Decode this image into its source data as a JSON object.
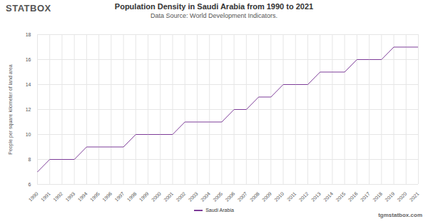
{
  "chart_data": {
    "type": "line",
    "title": "Population Density in Saudi Arabia from 1990 to 2021",
    "subtitle": "Data Source: World Development Indicators.",
    "annotations": [
      "STATBOX",
      "tgmstatbox.com"
    ],
    "y_label": "People per square kilometer of land area",
    "x": [
      1990,
      1991,
      1992,
      1993,
      1994,
      1995,
      1996,
      1997,
      1998,
      1999,
      2000,
      2001,
      2002,
      2003,
      2004,
      2005,
      2006,
      2007,
      2008,
      2009,
      2010,
      2011,
      2012,
      2013,
      2014,
      2015,
      2016,
      2017,
      2018,
      2019,
      2020,
      2021
    ],
    "series": [
      {
        "name": "Saudi Arabia",
        "color": "#7d3c98",
        "values": [
          7,
          8,
          8,
          8,
          9,
          9,
          9,
          9,
          10,
          10,
          10,
          10,
          11,
          11,
          11,
          11,
          12,
          12,
          13,
          13,
          14,
          14,
          14,
          15,
          15,
          15,
          16,
          16,
          16,
          17,
          17,
          17
        ]
      }
    ],
    "xlim": [
      1990,
      2021
    ],
    "xticks": [
      1990,
      1991,
      1992,
      1993,
      1994,
      1995,
      1996,
      1997,
      1998,
      1999,
      2000,
      2001,
      2002,
      2003,
      2004,
      2005,
      2006,
      2007,
      2008,
      2009,
      2010,
      2011,
      2012,
      2013,
      2014,
      2015,
      2016,
      2017,
      2018,
      2019,
      2020,
      2021
    ],
    "ylim": [
      6,
      18
    ],
    "yticks": [
      6,
      8,
      10,
      12,
      14,
      16,
      18
    ],
    "grid": true,
    "legend": "bottom"
  }
}
